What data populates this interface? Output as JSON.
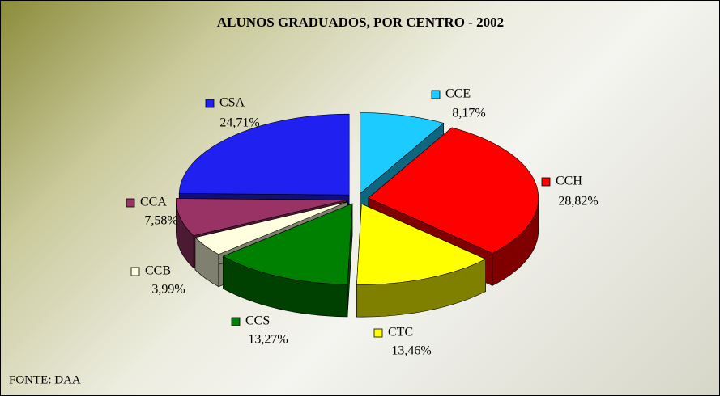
{
  "chart_data": {
    "type": "pie3d",
    "title": "ALUNOS GRADUADOS, POR CENTRO - 2002",
    "source": "FONTE: DAA",
    "categories": [
      "CCE",
      "CCH",
      "CTC",
      "CCS",
      "CCB",
      "CCA",
      "CSA"
    ],
    "values": [
      8.17,
      28.82,
      13.46,
      13.27,
      3.99,
      7.58,
      24.71
    ],
    "value_labels": [
      "8,17%",
      "28,82%",
      "13,46%",
      "13,27%",
      "3,99%",
      "7,58%",
      "24,71%"
    ],
    "colors": [
      "#1ccbff",
      "#ff0000",
      "#ffff00",
      "#008000",
      "#ffffe0",
      "#993366",
      "#2020f0"
    ]
  }
}
